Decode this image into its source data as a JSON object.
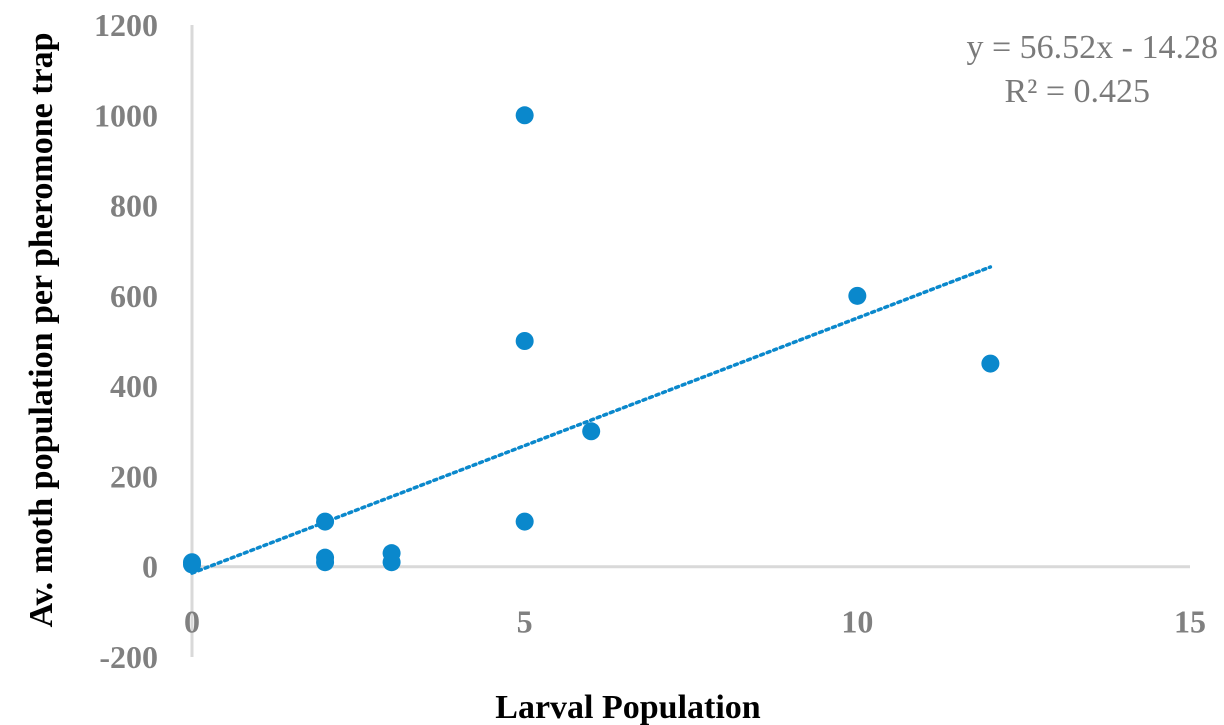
{
  "chart_data": {
    "type": "scatter",
    "title": "",
    "xlabel": "Larval Population",
    "ylabel": "Av. moth population per pheromone trap",
    "xlim": [
      0,
      15
    ],
    "ylim": [
      -200,
      1200
    ],
    "x_ticks": [
      "0",
      "5",
      "10",
      "15"
    ],
    "y_ticks": [
      "-200",
      "0",
      "200",
      "400",
      "600",
      "800",
      "1000",
      "1200"
    ],
    "grid": false,
    "legend": "none",
    "series": [
      {
        "color": "#0a88cc",
        "points": [
          {
            "x": 0,
            "y": 10
          },
          {
            "x": 0,
            "y": 5
          },
          {
            "x": 2,
            "y": 100
          },
          {
            "x": 2,
            "y": 20
          },
          {
            "x": 2,
            "y": 10
          },
          {
            "x": 3,
            "y": 30
          },
          {
            "x": 3,
            "y": 10
          },
          {
            "x": 5,
            "y": 1000
          },
          {
            "x": 5,
            "y": 500
          },
          {
            "x": 5,
            "y": 100
          },
          {
            "x": 6,
            "y": 300
          },
          {
            "x": 10,
            "y": 600
          },
          {
            "x": 12,
            "y": 450
          }
        ]
      }
    ],
    "trendline": {
      "type": "linear",
      "slope": 56.52,
      "intercept": -14.28,
      "x_range": [
        0,
        12
      ],
      "style": "dotted",
      "color": "#0a88cc"
    },
    "annotations": {
      "equation": "y = 56.52x - 14.28",
      "r_squared": "R² = 0.425"
    }
  }
}
